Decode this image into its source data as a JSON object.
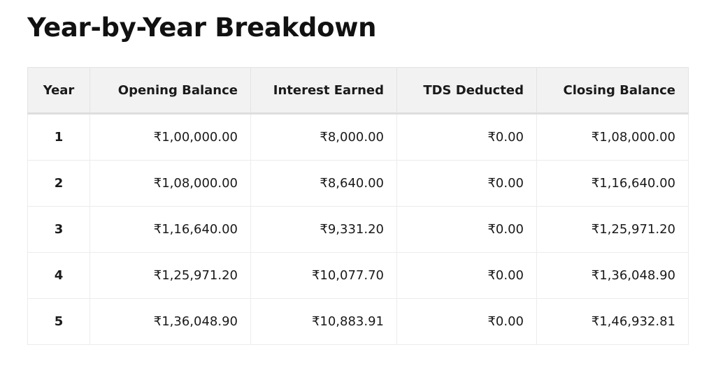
{
  "page": {
    "title": "Year-by-Year Breakdown"
  },
  "table": {
    "headers": {
      "year": "Year",
      "opening_balance": "Opening Balance",
      "interest_earned": "Interest Earned",
      "tds_deducted": "TDS Deducted",
      "closing_balance": "Closing Balance"
    },
    "rows": [
      {
        "year": "1",
        "opening_balance": "₹1,00,000.00",
        "interest_earned": "₹8,000.00",
        "tds_deducted": "₹0.00",
        "closing_balance": "₹1,08,000.00"
      },
      {
        "year": "2",
        "opening_balance": "₹1,08,000.00",
        "interest_earned": "₹8,640.00",
        "tds_deducted": "₹0.00",
        "closing_balance": "₹1,16,640.00"
      },
      {
        "year": "3",
        "opening_balance": "₹1,16,640.00",
        "interest_earned": "₹9,331.20",
        "tds_deducted": "₹0.00",
        "closing_balance": "₹1,25,971.20"
      },
      {
        "year": "4",
        "opening_balance": "₹1,25,971.20",
        "interest_earned": "₹10,077.70",
        "tds_deducted": "₹0.00",
        "closing_balance": "₹1,36,048.90"
      },
      {
        "year": "5",
        "opening_balance": "₹1,36,048.90",
        "interest_earned": "₹10,883.91",
        "tds_deducted": "₹0.00",
        "closing_balance": "₹1,46,932.81"
      }
    ]
  },
  "colors": {
    "header_background": "#f2f2f2",
    "border": "#ececec",
    "text": "#1a1a1a"
  }
}
